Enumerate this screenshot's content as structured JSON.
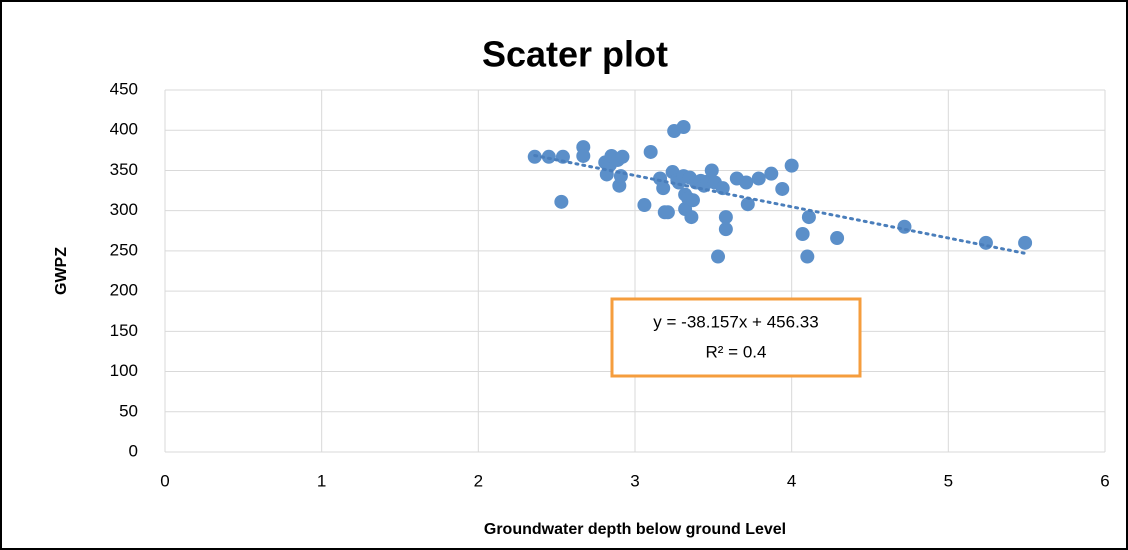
{
  "chart_data": {
    "type": "scatter",
    "title": "Scater plot",
    "x_label": "Groundwater depth  below ground Level",
    "y_label": "GWPZ",
    "series": [
      {
        "name": "GWPZ",
        "color": "#5b8fc9",
        "x": [
          2.36,
          2.45,
          2.54,
          2.53,
          2.67,
          2.67,
          2.81,
          2.82,
          2.84,
          2.85,
          2.89,
          2.9,
          2.91,
          2.92,
          3.06,
          3.1,
          3.16,
          3.18,
          3.19,
          3.21,
          3.24,
          3.25,
          3.27,
          3.28,
          3.31,
          3.31,
          3.32,
          3.32,
          3.34,
          3.35,
          3.36,
          3.37,
          3.39,
          3.42,
          3.44,
          3.46,
          3.49,
          3.51,
          3.53,
          3.56,
          3.58,
          3.58,
          3.65,
          3.71,
          3.72,
          3.79,
          3.87,
          3.94,
          4.0,
          4.07,
          4.1,
          4.11,
          4.29,
          4.72,
          5.24,
          5.49
        ],
        "values": [
          367,
          367,
          367,
          311,
          379,
          368,
          360,
          345,
          357,
          368,
          363,
          331,
          343,
          367,
          307,
          373,
          340,
          328,
          298,
          298,
          348,
          399,
          338,
          335,
          404,
          343,
          320,
          302,
          315,
          341,
          292,
          313,
          335,
          337,
          331,
          336,
          350,
          335,
          243,
          328,
          277,
          292,
          340,
          335,
          308,
          340,
          346,
          327,
          356,
          271,
          243,
          292,
          266,
          280,
          260,
          260
        ]
      }
    ],
    "trendline": {
      "color": "#4a7ebb",
      "label": [
        "y = -38.157x + 456.33",
        "R² = 0.4"
      ],
      "box_color": "#f59d3d"
    },
    "xlim": [
      0,
      6
    ],
    "xticks": [
      0,
      1,
      2,
      3,
      4,
      5,
      6
    ],
    "ylim": [
      0,
      450
    ],
    "yticks": [
      0,
      50,
      100,
      150,
      200,
      250,
      300,
      350,
      400,
      450
    ],
    "grid": true
  }
}
